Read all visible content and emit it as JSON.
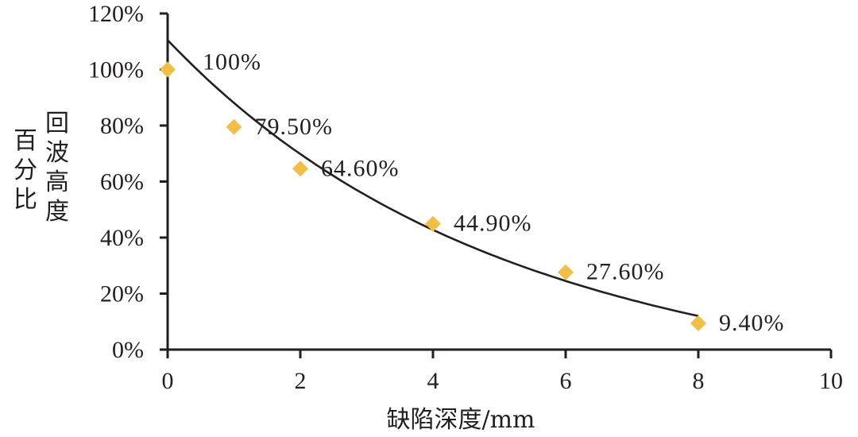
{
  "chart_data": {
    "type": "scatter",
    "title": "",
    "xlabel": "缺陷深度/mm",
    "ylabel": "回波高度百分比",
    "ylabel_lines": [
      "回波高度",
      "百分比"
    ],
    "xlim": [
      0,
      10
    ],
    "ylim": [
      0,
      120
    ],
    "x_ticks": [
      0,
      2,
      4,
      6,
      8,
      10
    ],
    "x_tick_labels": [
      "0",
      "2",
      "4",
      "6",
      "8",
      "10"
    ],
    "y_ticks": [
      0,
      20,
      40,
      60,
      80,
      100,
      120
    ],
    "y_tick_labels": [
      "0%",
      "20%",
      "40%",
      "60%",
      "80%",
      "100%",
      "120%"
    ],
    "grid": false,
    "legend": null,
    "series": [
      {
        "name": "回波高度百分比",
        "marker": "diamond",
        "color": "#F2BE45",
        "x": [
          0,
          1,
          2,
          4,
          6,
          8
        ],
        "y": [
          100,
          79.5,
          64.6,
          44.9,
          27.6,
          9.4
        ],
        "labels": [
          "100%",
          "79.50%",
          "64.60%",
          "44.90%",
          "27.60%",
          "9.40%"
        ]
      },
      {
        "name": "exponential trendline",
        "type": "line",
        "color": "#231f20",
        "x": [
          0,
          1,
          2,
          3,
          4,
          5,
          6,
          7,
          8
        ],
        "y": [
          110.5,
          89.5,
          72.5,
          58.5,
          47.5,
          38.5,
          31.2,
          25.3,
          12.0
        ]
      }
    ]
  },
  "colors": {
    "marker": "#F2BE45",
    "axis": "#231f20",
    "curve": "#231f20"
  }
}
